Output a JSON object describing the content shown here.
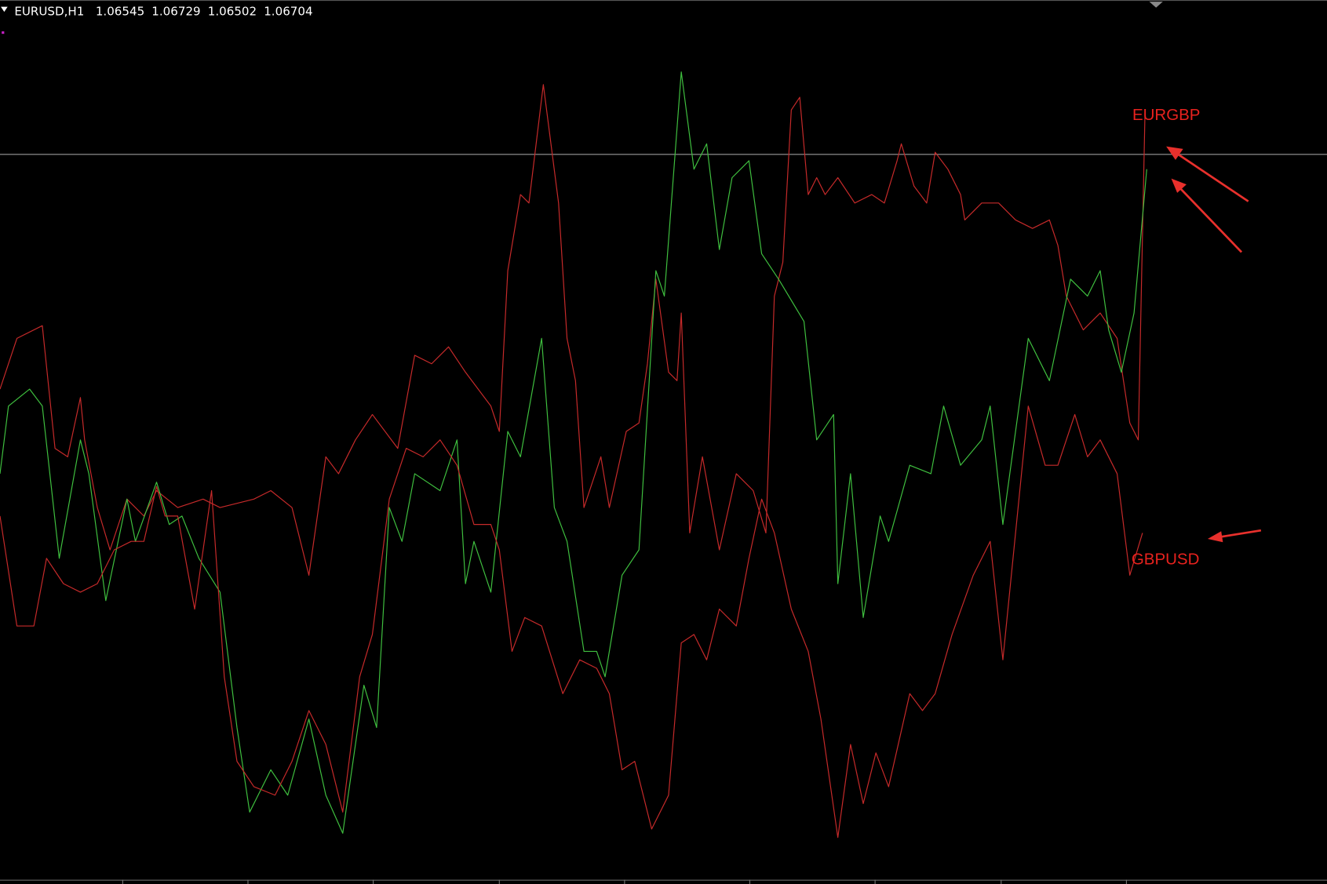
{
  "header": {
    "symbol": "EURUSD,H1",
    "open": 1.06545,
    "high": 1.06729,
    "low": 1.06502,
    "close": 1.06704
  },
  "chart_data": {
    "type": "line",
    "xlim": [
      0,
      1568
    ],
    "ylim": [
      0,
      1040
    ],
    "hline": 858,
    "annotations": [
      "EURGBP",
      "GBPUSD"
    ],
    "series": [
      {
        "color": "#c62a2a",
        "x": [
          0,
          20,
          50,
          65,
          80,
          95,
          100,
          115,
          130,
          150,
          170,
          185,
          210,
          240,
          260,
          300,
          320,
          345,
          365,
          385,
          400,
          420,
          440,
          470,
          490,
          510,
          530,
          550,
          580,
          590,
          600,
          615,
          625,
          642,
          660,
          670,
          680,
          690,
          710,
          720,
          740,
          755,
          765,
          775,
          790,
          800,
          805,
          815,
          830,
          850,
          870,
          890,
          905,
          915,
          925,
          935,
          945,
          955,
          965,
          975,
          990,
          1010,
          1030,
          1045,
          1060,
          1065,
          1080,
          1095,
          1105,
          1120,
          1135,
          1140,
          1160,
          1180,
          1200,
          1220,
          1240,
          1250,
          1260,
          1280,
          1300,
          1320,
          1335,
          1345,
          1353
        ],
        "values": [
          580,
          640,
          655,
          510,
          500,
          570,
          520,
          440,
          390,
          450,
          430,
          460,
          440,
          450,
          440,
          450,
          460,
          440,
          360,
          500,
          480,
          520,
          550,
          510,
          620,
          610,
          630,
          600,
          560,
          530,
          720,
          810,
          800,
          940,
          800,
          640,
          590,
          440,
          500,
          440,
          530,
          540,
          610,
          710,
          600,
          590,
          670,
          410,
          500,
          390,
          480,
          460,
          410,
          690,
          730,
          910,
          925,
          810,
          830,
          810,
          830,
          800,
          810,
          800,
          850,
          870,
          820,
          800,
          860,
          840,
          810,
          780,
          800,
          800,
          780,
          770,
          780,
          750,
          690,
          650,
          670,
          640,
          540,
          520,
          910
        ]
      },
      {
        "color": "#3fbf3f",
        "x": [
          0,
          10,
          35,
          50,
          70,
          95,
          105,
          125,
          150,
          160,
          185,
          200,
          215,
          235,
          260,
          280,
          295,
          320,
          340,
          365,
          385,
          405,
          430,
          445,
          460,
          475,
          490,
          520,
          540,
          550,
          560,
          580,
          600,
          615,
          640,
          655,
          670,
          690,
          705,
          715,
          735,
          755,
          775,
          785,
          805,
          820,
          835,
          850,
          865,
          885,
          900,
          920,
          950,
          965,
          985,
          990,
          1005,
          1020,
          1040,
          1050,
          1075,
          1100,
          1115,
          1135,
          1160,
          1170,
          1185,
          1215,
          1240,
          1265,
          1285,
          1300,
          1310,
          1325,
          1340,
          1355
        ],
        "values": [
          480,
          560,
          580,
          560,
          380,
          520,
          480,
          330,
          450,
          400,
          470,
          420,
          430,
          380,
          340,
          180,
          80,
          130,
          100,
          190,
          100,
          55,
          230,
          180,
          440,
          400,
          480,
          460,
          520,
          350,
          400,
          340,
          530,
          500,
          640,
          440,
          400,
          270,
          270,
          240,
          360,
          390,
          720,
          690,
          955,
          840,
          870,
          745,
          830,
          850,
          740,
          710,
          660,
          520,
          550,
          350,
          480,
          310,
          430,
          400,
          490,
          480,
          560,
          490,
          520,
          560,
          420,
          640,
          590,
          710,
          690,
          720,
          650,
          600,
          670,
          840
        ]
      },
      {
        "color": "#c62a2a",
        "x": [
          0,
          20,
          40,
          55,
          75,
          95,
          115,
          135,
          155,
          170,
          185,
          195,
          210,
          230,
          250,
          265,
          280,
          300,
          325,
          345,
          365,
          385,
          405,
          425,
          440,
          460,
          480,
          500,
          520,
          540,
          560,
          580,
          590,
          605,
          620,
          640,
          665,
          685,
          705,
          720,
          735,
          750,
          770,
          790,
          805,
          820,
          835,
          850,
          870,
          885,
          900,
          915,
          935,
          955,
          970,
          990,
          1005,
          1020,
          1035,
          1050,
          1075,
          1090,
          1105,
          1125,
          1150,
          1170,
          1185,
          1215,
          1235,
          1250,
          1270,
          1285,
          1300,
          1320,
          1335,
          1350
        ],
        "values": [
          430,
          300,
          300,
          380,
          350,
          340,
          350,
          390,
          400,
          400,
          465,
          430,
          430,
          320,
          460,
          240,
          140,
          110,
          100,
          140,
          200,
          160,
          80,
          240,
          290,
          450,
          510,
          500,
          520,
          490,
          420,
          420,
          390,
          270,
          310,
          300,
          220,
          260,
          250,
          220,
          130,
          140,
          60,
          100,
          280,
          290,
          260,
          320,
          300,
          380,
          450,
          410,
          320,
          270,
          190,
          50,
          160,
          90,
          150,
          110,
          220,
          200,
          220,
          290,
          360,
          400,
          260,
          560,
          490,
          490,
          550,
          500,
          520,
          480,
          360,
          410
        ]
      }
    ]
  }
}
